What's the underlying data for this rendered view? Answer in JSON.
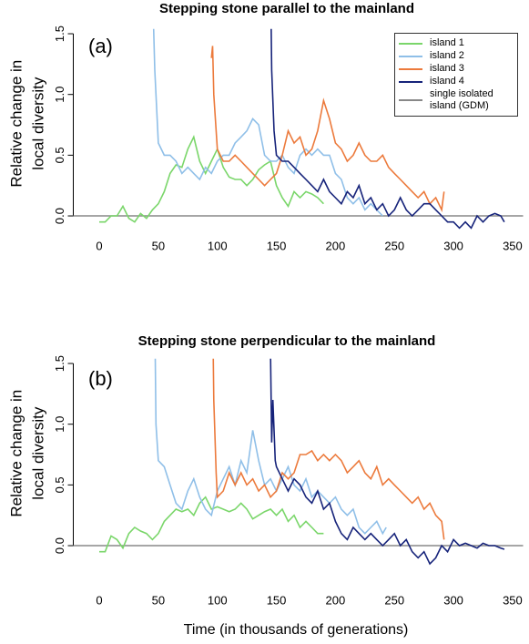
{
  "chart_data": [
    {
      "type": "line",
      "title": "Stepping stone parallel to the mainland",
      "panel_label": "(a)",
      "ylabel": [
        "Relative change in",
        "local diversity"
      ],
      "xlim": [
        -22,
        359
      ],
      "ylim": [
        -0.2,
        1.54
      ],
      "xticks": [
        0,
        50,
        100,
        150,
        200,
        250,
        300,
        350
      ],
      "yticks": [
        {
          "value": 0,
          "label": "0.0"
        },
        {
          "value": 0.5,
          "label": "0.5"
        },
        {
          "value": 1,
          "label": "1.0"
        },
        {
          "value": 1.5,
          "label": "1.5"
        }
      ],
      "legend": "top-right",
      "series": [
        {
          "name": "island 1",
          "color": "#7ad66a",
          "x": [
            0,
            5,
            10,
            15,
            20,
            25,
            30,
            35,
            40,
            45,
            50,
            55,
            60,
            65,
            70,
            75,
            80,
            85,
            90,
            95,
            100,
            105,
            110,
            115,
            120,
            125,
            130,
            135,
            140,
            145,
            150,
            155,
            160,
            165,
            170,
            175,
            180,
            185,
            190
          ],
          "values": [
            -0.05,
            -0.05,
            0.0,
            0.0,
            0.08,
            -0.02,
            -0.05,
            0.02,
            -0.02,
            0.05,
            0.1,
            0.2,
            0.35,
            0.42,
            0.4,
            0.55,
            0.65,
            0.45,
            0.35,
            0.45,
            0.55,
            0.4,
            0.32,
            0.3,
            0.3,
            0.25,
            0.3,
            0.38,
            0.42,
            0.45,
            0.25,
            0.15,
            0.08,
            0.2,
            0.15,
            0.2,
            0.18,
            0.15,
            0.1
          ]
        },
        {
          "name": "island 2",
          "color": "#8fbfe8",
          "x": [
            45,
            47,
            50,
            55,
            60,
            65,
            70,
            75,
            80,
            85,
            90,
            95,
            100,
            105,
            110,
            115,
            120,
            125,
            130,
            135,
            140,
            145,
            150,
            155,
            160,
            165,
            170,
            175,
            180,
            185,
            190,
            195,
            200,
            205,
            210,
            215,
            220,
            225,
            230,
            235,
            240
          ],
          "values": [
            1.9,
            1.2,
            0.6,
            0.5,
            0.5,
            0.45,
            0.35,
            0.4,
            0.35,
            0.3,
            0.4,
            0.35,
            0.45,
            0.5,
            0.5,
            0.6,
            0.65,
            0.7,
            0.8,
            0.75,
            0.5,
            0.45,
            0.45,
            0.5,
            0.4,
            0.35,
            0.5,
            0.55,
            0.5,
            0.55,
            0.5,
            0.5,
            0.35,
            0.3,
            0.15,
            0.1,
            0.15,
            0.05,
            0.1,
            0.05,
            0.0
          ]
        },
        {
          "name": "island 3",
          "color": "#ec7a3c",
          "x": [
            95,
            96,
            97,
            100,
            105,
            110,
            115,
            120,
            125,
            130,
            135,
            140,
            145,
            150,
            155,
            160,
            165,
            170,
            175,
            180,
            185,
            190,
            195,
            200,
            205,
            210,
            215,
            220,
            225,
            230,
            235,
            240,
            245,
            250,
            255,
            260,
            265,
            270,
            275,
            280,
            285,
            290,
            292
          ],
          "values": [
            1.3,
            1.4,
            1.0,
            0.55,
            0.45,
            0.45,
            0.5,
            0.45,
            0.4,
            0.35,
            0.3,
            0.25,
            0.3,
            0.35,
            0.5,
            0.7,
            0.6,
            0.65,
            0.5,
            0.55,
            0.7,
            0.95,
            0.8,
            0.6,
            0.55,
            0.45,
            0.5,
            0.6,
            0.5,
            0.45,
            0.45,
            0.5,
            0.4,
            0.35,
            0.3,
            0.25,
            0.2,
            0.15,
            0.2,
            0.1,
            0.15,
            0.05,
            0.2
          ]
        },
        {
          "name": "island 4",
          "color": "#16237a",
          "x": [
            145,
            146,
            148,
            150,
            155,
            160,
            165,
            170,
            175,
            180,
            185,
            190,
            195,
            200,
            205,
            210,
            215,
            220,
            225,
            230,
            235,
            240,
            245,
            250,
            255,
            260,
            265,
            270,
            275,
            280,
            285,
            290,
            295,
            300,
            305,
            310,
            315,
            320,
            325,
            330,
            335,
            340,
            343
          ],
          "values": [
            2.0,
            1.2,
            0.7,
            0.5,
            0.45,
            0.45,
            0.4,
            0.35,
            0.3,
            0.25,
            0.2,
            0.3,
            0.2,
            0.15,
            0.1,
            0.2,
            0.15,
            0.25,
            0.1,
            0.15,
            0.05,
            0.1,
            0.0,
            0.05,
            0.15,
            0.05,
            0.0,
            0.05,
            0.1,
            0.1,
            0.05,
            0.0,
            -0.05,
            -0.05,
            -0.1,
            -0.05,
            -0.1,
            0.0,
            -0.05,
            0.0,
            0.02,
            0.0,
            -0.05
          ]
        },
        {
          "name": "single isolated island (GDM)",
          "color": "#888888",
          "x": [
            -22,
            359
          ],
          "values": [
            0,
            0
          ]
        }
      ]
    },
    {
      "type": "line",
      "title": "Stepping stone perpendicular to the mainland",
      "panel_label": "(b)",
      "ylabel": [
        "Relative change in",
        "local diversity"
      ],
      "xlabel": "Time (in thousands of generations)",
      "xlim": [
        -22,
        359
      ],
      "ylim": [
        -0.2,
        1.54
      ],
      "xticks": [
        0,
        50,
        100,
        150,
        200,
        250,
        300,
        350
      ],
      "yticks": [
        {
          "value": 0,
          "label": "0.0"
        },
        {
          "value": 0.5,
          "label": "0.5"
        },
        {
          "value": 1,
          "label": "1.0"
        },
        {
          "value": 1.5,
          "label": "1.5"
        }
      ],
      "series": [
        {
          "color": "#7ad66a",
          "x": [
            0,
            5,
            10,
            15,
            20,
            25,
            30,
            35,
            40,
            45,
            50,
            55,
            60,
            65,
            70,
            75,
            80,
            85,
            90,
            95,
            100,
            105,
            110,
            115,
            120,
            125,
            130,
            135,
            140,
            145,
            150,
            155,
            160,
            165,
            170,
            175,
            180,
            185,
            190
          ],
          "values": [
            -0.05,
            -0.05,
            0.08,
            0.05,
            -0.02,
            0.1,
            0.15,
            0.12,
            0.1,
            0.05,
            0.1,
            0.2,
            0.25,
            0.3,
            0.28,
            0.3,
            0.25,
            0.35,
            0.4,
            0.3,
            0.32,
            0.3,
            0.28,
            0.3,
            0.35,
            0.3,
            0.22,
            0.25,
            0.28,
            0.3,
            0.25,
            0.3,
            0.2,
            0.25,
            0.15,
            0.2,
            0.15,
            0.1,
            0.1
          ]
        },
        {
          "color": "#8fbfe8",
          "x": [
            47,
            48,
            50,
            55,
            60,
            65,
            70,
            75,
            80,
            85,
            90,
            95,
            100,
            105,
            110,
            115,
            120,
            125,
            130,
            135,
            140,
            145,
            150,
            155,
            160,
            165,
            170,
            175,
            180,
            185,
            190,
            195,
            200,
            205,
            210,
            215,
            220,
            225,
            230,
            235,
            240,
            243
          ],
          "values": [
            1.9,
            1.0,
            0.7,
            0.65,
            0.5,
            0.35,
            0.3,
            0.45,
            0.55,
            0.4,
            0.3,
            0.25,
            0.45,
            0.55,
            0.65,
            0.5,
            0.7,
            0.6,
            0.95,
            0.7,
            0.5,
            0.55,
            0.45,
            0.55,
            0.65,
            0.5,
            0.45,
            0.55,
            0.4,
            0.45,
            0.4,
            0.35,
            0.4,
            0.3,
            0.25,
            0.3,
            0.15,
            0.1,
            0.15,
            0.2,
            0.1,
            0.15
          ]
        },
        {
          "color": "#ec7a3c",
          "x": [
            96,
            97,
            99,
            100,
            105,
            110,
            115,
            120,
            125,
            130,
            135,
            140,
            145,
            150,
            155,
            160,
            165,
            170,
            175,
            180,
            185,
            190,
            195,
            200,
            205,
            210,
            215,
            220,
            225,
            230,
            235,
            240,
            245,
            250,
            255,
            260,
            265,
            270,
            275,
            280,
            285,
            290,
            292
          ],
          "values": [
            2.0,
            1.2,
            0.6,
            0.4,
            0.45,
            0.6,
            0.5,
            0.6,
            0.5,
            0.55,
            0.45,
            0.5,
            0.4,
            0.45,
            0.6,
            0.55,
            0.6,
            0.75,
            0.75,
            0.78,
            0.7,
            0.75,
            0.7,
            0.75,
            0.7,
            0.6,
            0.65,
            0.7,
            0.6,
            0.55,
            0.65,
            0.5,
            0.55,
            0.5,
            0.45,
            0.4,
            0.35,
            0.4,
            0.3,
            0.35,
            0.25,
            0.2,
            0.05
          ]
        },
        {
          "color": "#16237a",
          "x": [
            145,
            146,
            147,
            149,
            150,
            155,
            160,
            165,
            170,
            175,
            180,
            185,
            190,
            195,
            200,
            205,
            210,
            215,
            220,
            225,
            230,
            235,
            240,
            245,
            250,
            255,
            260,
            265,
            270,
            275,
            280,
            285,
            290,
            295,
            300,
            305,
            310,
            315,
            320,
            325,
            330,
            335,
            340,
            343
          ],
          "values": [
            1.6,
            0.85,
            1.2,
            0.7,
            0.65,
            0.55,
            0.45,
            0.55,
            0.5,
            0.4,
            0.35,
            0.45,
            0.3,
            0.35,
            0.2,
            0.1,
            0.05,
            0.15,
            0.1,
            0.05,
            0.1,
            0.05,
            0.0,
            0.05,
            0.1,
            0.0,
            0.05,
            -0.05,
            -0.1,
            -0.05,
            -0.15,
            -0.1,
            0.0,
            -0.05,
            0.05,
            0.0,
            0.02,
            0.0,
            -0.02,
            0.02,
            0.0,
            0.0,
            -0.02,
            -0.03
          ]
        },
        {
          "color": "#888888",
          "x": [
            -22,
            359
          ],
          "values": [
            0,
            0
          ]
        }
      ]
    }
  ]
}
